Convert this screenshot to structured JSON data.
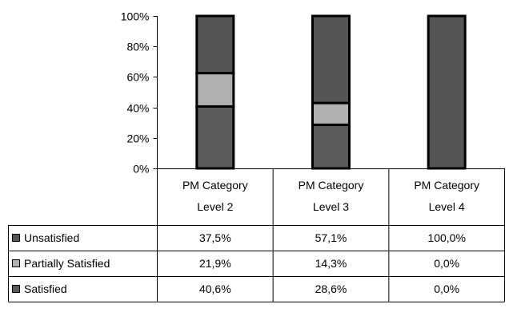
{
  "chart_data": {
    "type": "bar",
    "stacked": true,
    "percent": true,
    "categories": [
      [
        "PM Category",
        "Level 2"
      ],
      [
        "PM Category",
        "Level 3"
      ],
      [
        "PM Category",
        "Level 4"
      ]
    ],
    "series": [
      {
        "name": "Unsatisfied",
        "values": [
          37.5,
          57.1,
          100.0
        ],
        "labels": [
          "37,5%",
          "57,1%",
          "100,0%"
        ],
        "color": "#555555"
      },
      {
        "name": "Partially Satisfied",
        "values": [
          21.9,
          14.3,
          0.0
        ],
        "labels": [
          "21,9%",
          "14,3%",
          "0,0%"
        ],
        "color": "#b0b0b0"
      },
      {
        "name": "Satisfied",
        "values": [
          40.6,
          28.6,
          0.0
        ],
        "labels": [
          "40,6%",
          "28,6%",
          "0,0%"
        ],
        "color": "#5a5a5a"
      }
    ],
    "y_ticks": [
      "0%",
      "20%",
      "40%",
      "60%",
      "80%",
      "100%"
    ],
    "ylim": [
      0,
      100
    ],
    "grid": false,
    "legend": "data-table",
    "data_table": true
  }
}
